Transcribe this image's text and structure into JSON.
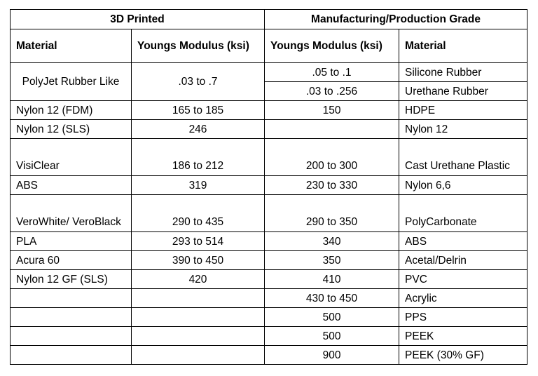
{
  "groups": {
    "left": "3D Printed",
    "right": "Manufacturing/Production Grade"
  },
  "columns": {
    "c1": "Material",
    "c2": "Youngs Modulus (ksi)",
    "c3": "Youngs Modulus (ksi)",
    "c4": "Material"
  },
  "rows": [
    {
      "m1": "PolyJet Rubber Like",
      "y1": ".03 to .7",
      "y2": ".05 to .1",
      "m2": "Silicone Rubber"
    },
    {
      "y2": ".03 to .256",
      "m2": "Urethane Rubber"
    },
    {
      "m1": "Nylon 12 (FDM)",
      "y1": "165 to 185",
      "y2": "150",
      "m2": "HDPE"
    },
    {
      "m1": "Nylon 12 (SLS)",
      "y1": "246",
      "y2": "",
      "m2": "Nylon 12"
    },
    {
      "m1": "VisiClear",
      "y1": "186 to 212",
      "y2": "200 to 300",
      "m2": "Cast Urethane Plastic"
    },
    {
      "m1": "ABS",
      "y1": "319",
      "y2": "230 to 330",
      "m2": "Nylon 6,6"
    },
    {
      "m1": "VeroWhite/ VeroBlack",
      "y1": "290 to 435",
      "y2": "290 to 350",
      "m2": "PolyCarbonate"
    },
    {
      "m1": "PLA",
      "y1": "293 to 514",
      "y2": "340",
      "m2": "ABS"
    },
    {
      "m1": "Acura 60",
      "y1": "390 to 450",
      "y2": "350",
      "m2": "Acetal/Delrin"
    },
    {
      "m1": "Nylon 12 GF (SLS)",
      "y1": "420",
      "y2": "410",
      "m2": "PVC"
    },
    {
      "m1": "",
      "y1": "",
      "y2": "430 to 450",
      "m2": "Acrylic"
    },
    {
      "m1": "",
      "y1": "",
      "y2": "500",
      "m2": "PPS"
    },
    {
      "m1": "",
      "y1": "",
      "y2": "500",
      "m2": "PEEK"
    },
    {
      "m1": "",
      "y1": "",
      "y2": "900",
      "m2": "PEEK (30% GF)"
    }
  ]
}
